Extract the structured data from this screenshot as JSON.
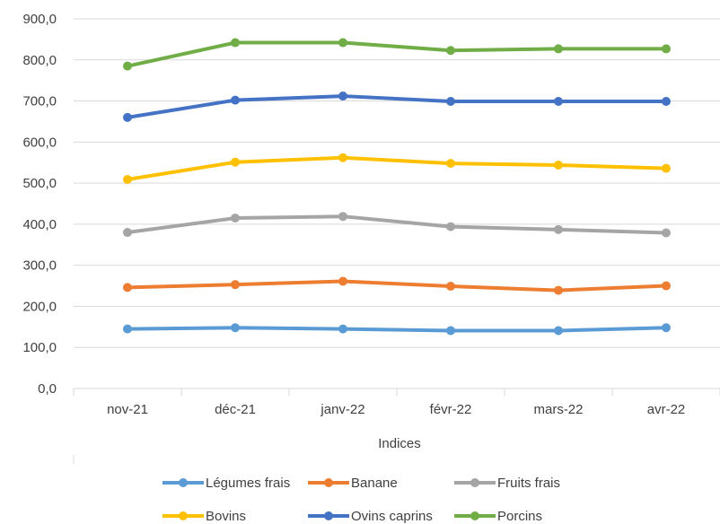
{
  "chart_data": {
    "type": "line",
    "categories": [
      "nov-21",
      "déc-21",
      "janv-22",
      "févr-22",
      "mars-22",
      "avr-22"
    ],
    "xlabel": "Indices",
    "ylabel": "",
    "ylim": [
      0,
      900
    ],
    "ytick_labels": [
      "0,0",
      "100,0",
      "200,0",
      "300,0",
      "400,0",
      "500,0",
      "600,0",
      "700,0",
      "800,0",
      "900,0"
    ],
    "grid": true,
    "legend_position": "bottom",
    "series": [
      {
        "name": "Légumes frais",
        "color": "#5B9BD5",
        "values": [
          145,
          148,
          145,
          141,
          141,
          148
        ]
      },
      {
        "name": "Banane",
        "color": "#ED7D31",
        "values": [
          246,
          253,
          261,
          249,
          239,
          250
        ]
      },
      {
        "name": "Fruits frais",
        "color": "#A5A5A5",
        "values": [
          380,
          415,
          419,
          394,
          387,
          379
        ]
      },
      {
        "name": "Bovins",
        "color": "#FFC000",
        "values": [
          509,
          551,
          562,
          548,
          544,
          536
        ]
      },
      {
        "name": "Ovins caprins",
        "color": "#4472C4",
        "values": [
          660,
          702,
          712,
          699,
          699,
          699
        ]
      },
      {
        "name": "Porcins",
        "color": "#70AD47",
        "values": [
          785,
          842,
          842,
          823,
          827,
          827
        ]
      }
    ]
  }
}
